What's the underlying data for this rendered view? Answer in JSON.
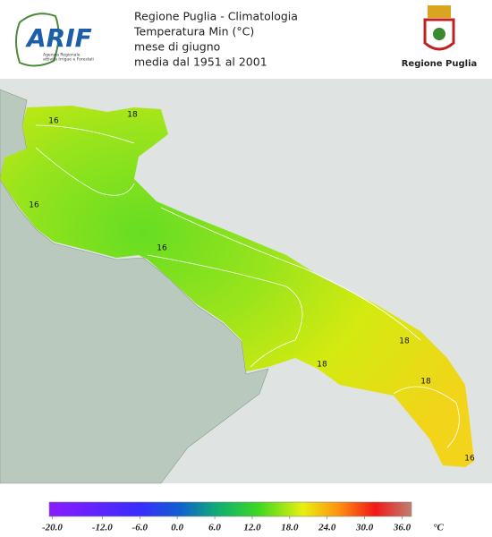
{
  "header": {
    "lines": [
      "Regione Puglia - Climatologia",
      "Temperatura Min (°C)",
      "mese di giugno",
      "media dal 1951 al 2001"
    ]
  },
  "logo_left": {
    "name": "ARIF",
    "subtitle": [
      "Agenzia Regionale",
      "attività Irrigue e Forestali"
    ]
  },
  "logo_right": {
    "name": "Regione Puglia"
  },
  "map": {
    "contour_labels": [
      16,
      18,
      16,
      16,
      18,
      18,
      18,
      16
    ]
  },
  "legend": {
    "range": [
      -20.5,
      37.5
    ],
    "ticks": [
      {
        "value": -20,
        "label": "-20.0"
      },
      {
        "value": -12,
        "label": "-12.0"
      },
      {
        "value": -6,
        "label": "-6.0"
      },
      {
        "value": 0,
        "label": "0.0"
      },
      {
        "value": 6,
        "label": "6.0"
      },
      {
        "value": 12,
        "label": "12.0"
      },
      {
        "value": 18,
        "label": "18.0"
      },
      {
        "value": 24,
        "label": "24.0"
      },
      {
        "value": 30,
        "label": "30.0"
      },
      {
        "value": 36,
        "label": "36.0"
      }
    ],
    "unit": "°C"
  }
}
